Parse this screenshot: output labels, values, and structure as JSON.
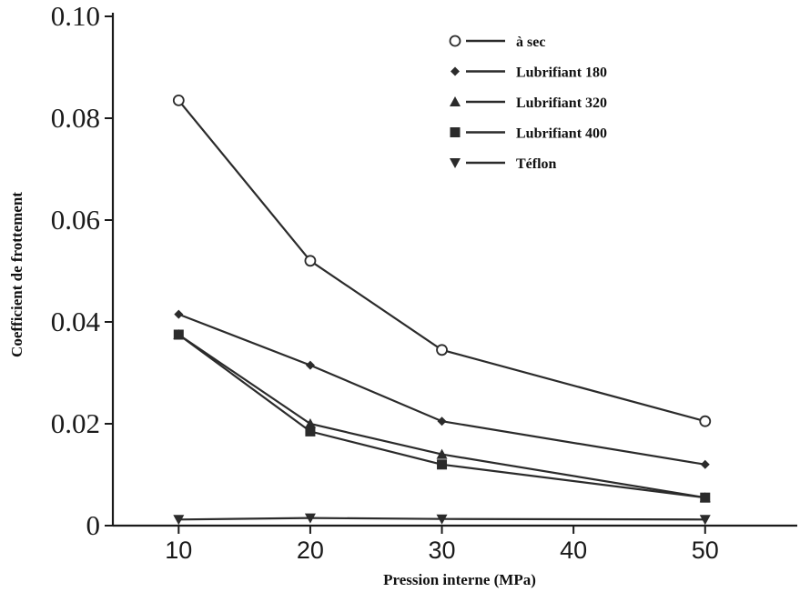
{
  "chart_data": {
    "type": "line",
    "xlabel": "Pression interne (MPa)",
    "ylabel": "Coefficient de frottement",
    "xlim": [
      5,
      57
    ],
    "ylim": [
      0,
      0.1
    ],
    "x_ticks": [
      "10",
      "20",
      "30",
      "40",
      "50"
    ],
    "y_ticks": [
      "0",
      "0.02",
      "0.04",
      "0.06",
      "0.08",
      "0.10"
    ],
    "legend_position": "top-right",
    "grid": false,
    "x": [
      10,
      20,
      30,
      50
    ],
    "series": [
      {
        "name": "à sec",
        "marker": "circle-open",
        "values": [
          0.0835,
          0.052,
          0.0345,
          0.0205
        ]
      },
      {
        "name": "Lubrifiant 180",
        "marker": "diamond",
        "values": [
          0.0415,
          0.0315,
          0.0205,
          0.012
        ]
      },
      {
        "name": "Lubrifiant 320",
        "marker": "triangle-up",
        "values": [
          0.0375,
          0.02,
          0.014,
          0.0055
        ]
      },
      {
        "name": "Lubrifiant 400",
        "marker": "square",
        "values": [
          0.0375,
          0.0185,
          0.012,
          0.0055
        ]
      },
      {
        "name": "Téflon",
        "marker": "triangle-down",
        "values": [
          0.0012,
          0.0015,
          0.0013,
          0.0012
        ]
      }
    ],
    "colors": {
      "line": "#2b2b2b",
      "axis": "#1a1a1a"
    }
  }
}
